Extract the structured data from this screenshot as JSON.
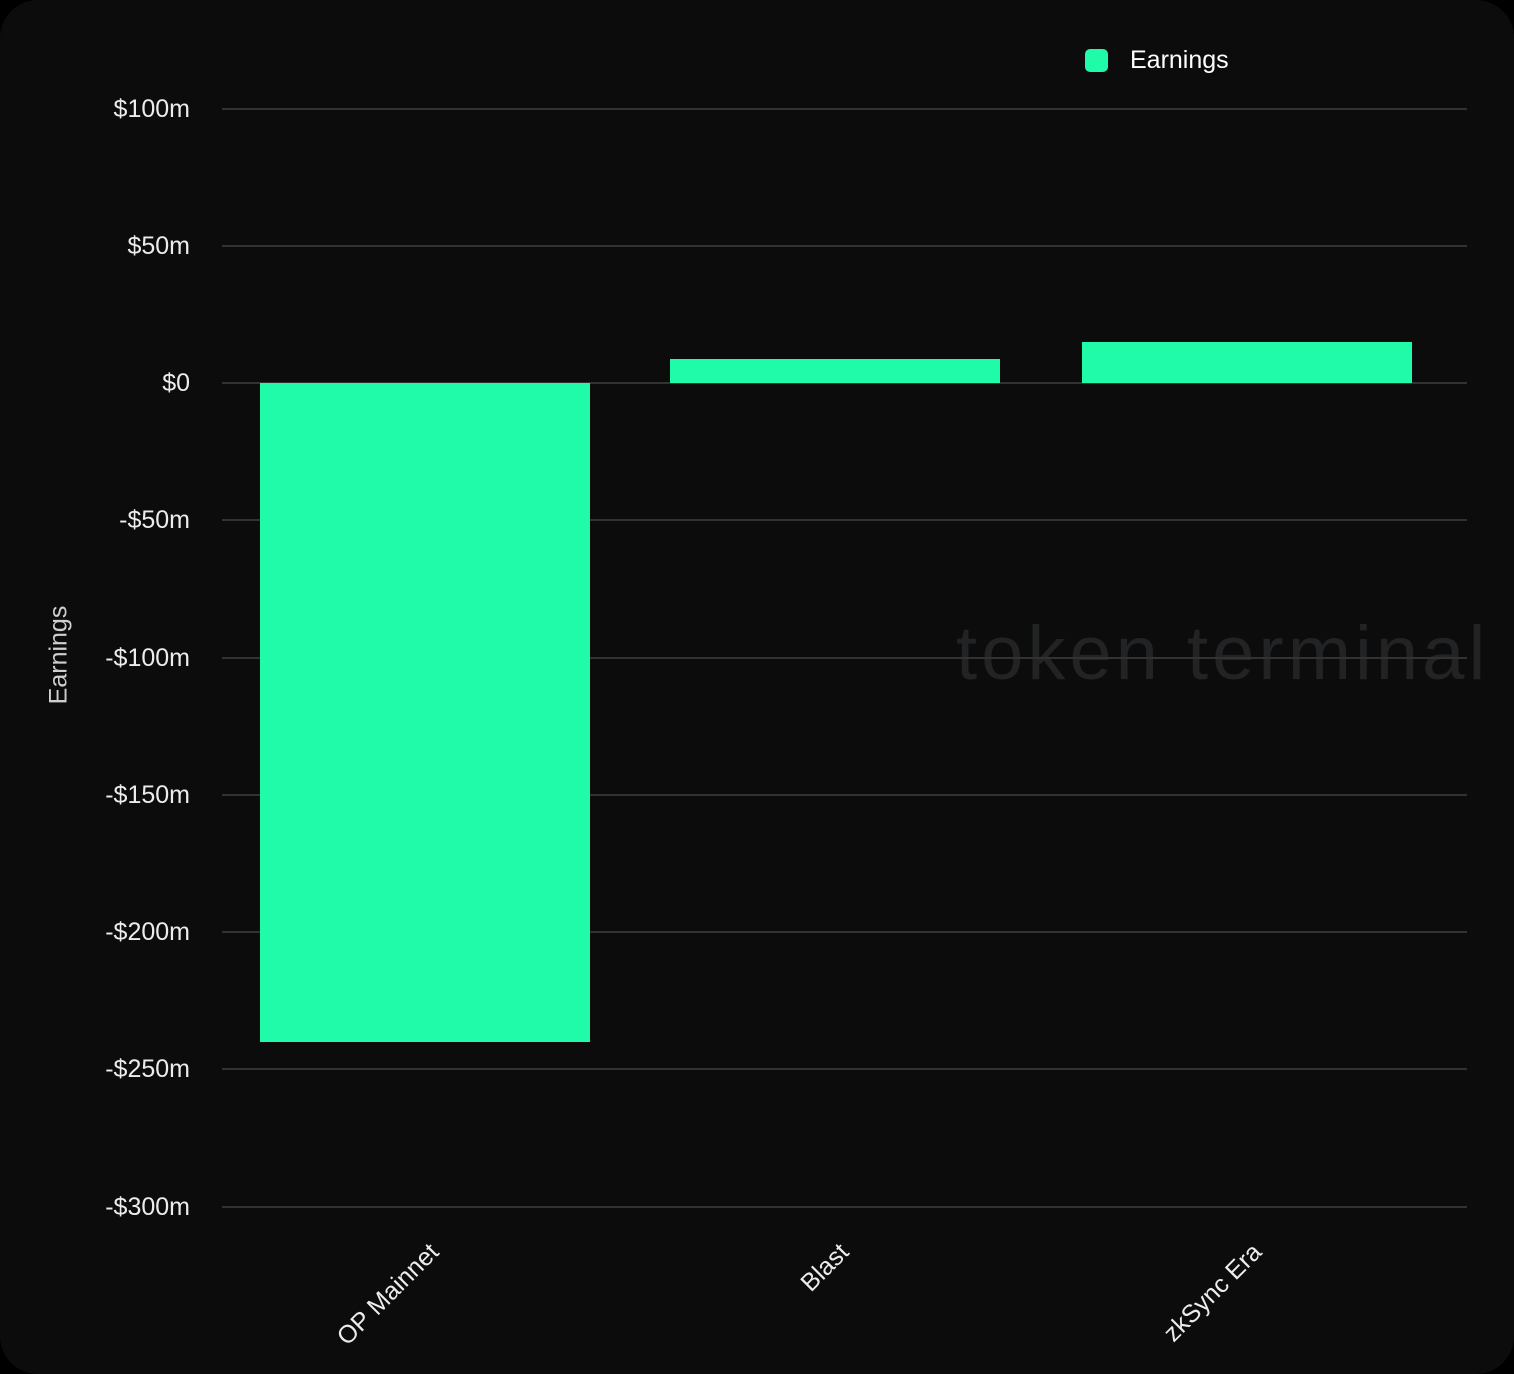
{
  "watermark": "token terminal",
  "colors": {
    "background": "#0c0c0c",
    "bar": "#1ffba8",
    "gridline": "#323232",
    "tick_text": "#ececec",
    "axis_title_text": "#cfcfcf",
    "legend_text": "#ffffff",
    "watermark_text": "#222325"
  },
  "chart_data": {
    "type": "bar",
    "categories": [
      "OP Mainnet",
      "Blast",
      "zkSync Era"
    ],
    "series": [
      {
        "name": "Earnings",
        "values": [
          -240,
          8.7,
          15
        ]
      }
    ],
    "unit": "$ millions",
    "title": "",
    "xlabel": "",
    "ylabel": "Earnings",
    "ylim": [
      -300,
      100
    ],
    "ytick_labels": [
      "$100m",
      "$50m",
      "$0",
      "-$50m",
      "-$100m",
      "-$150m",
      "-$200m",
      "-$250m",
      "-$300m"
    ],
    "ytick_values": [
      100,
      50,
      0,
      -50,
      -100,
      -150,
      -200,
      -250,
      -300
    ],
    "grid": true,
    "legend_position": "top-right",
    "background": "#0c0c0c",
    "bar_color": "#1ffba8"
  }
}
